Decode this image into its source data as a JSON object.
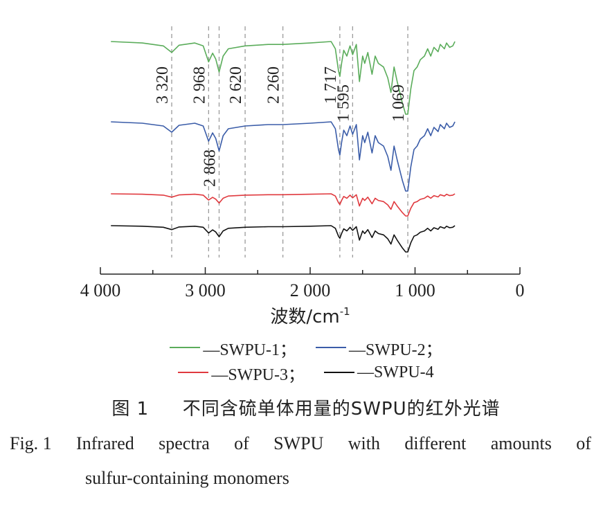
{
  "chart_data": {
    "type": "line",
    "xlabel": "波数/cm",
    "xlabel_sup": "-1",
    "xlim": [
      4000,
      0
    ],
    "xticks": [
      {
        "value": 4000,
        "label": "4 000"
      },
      {
        "value": 3000,
        "label": "3 000"
      },
      {
        "value": 2000,
        "label": "2 000"
      },
      {
        "value": 1000,
        "label": "1 000"
      },
      {
        "value": 0,
        "label": "0"
      }
    ],
    "yaxis_shown": false,
    "annotations": [
      {
        "x": 3320,
        "label": "3 320"
      },
      {
        "x": 2968,
        "label": "2 968"
      },
      {
        "x": 2868,
        "label": "2 868"
      },
      {
        "x": 2620,
        "label": "2 620"
      },
      {
        "x": 2260,
        "label": "2 260"
      },
      {
        "x": 1717,
        "label": "1 717"
      },
      {
        "x": 1595,
        "label": "1 595"
      },
      {
        "x": 1069,
        "label": "1 069"
      }
    ],
    "series": [
      {
        "name": "SWPU-1",
        "color": "#5aac5a",
        "points": [
          [
            3900,
            0
          ],
          [
            3600,
            -2
          ],
          [
            3400,
            -6
          ],
          [
            3320,
            -15
          ],
          [
            3250,
            -5
          ],
          [
            3100,
            -2
          ],
          [
            3020,
            -6
          ],
          [
            2968,
            -28
          ],
          [
            2930,
            -16
          ],
          [
            2900,
            -24
          ],
          [
            2868,
            -42
          ],
          [
            2830,
            -20
          ],
          [
            2780,
            -10
          ],
          [
            2620,
            -6
          ],
          [
            2400,
            -4
          ],
          [
            2260,
            -4
          ],
          [
            2000,
            -2
          ],
          [
            1800,
            0
          ],
          [
            1760,
            -10
          ],
          [
            1730,
            -40
          ],
          [
            1717,
            -48
          ],
          [
            1700,
            -30
          ],
          [
            1680,
            -12
          ],
          [
            1650,
            -20
          ],
          [
            1620,
            -6
          ],
          [
            1595,
            -18
          ],
          [
            1560,
            -4
          ],
          [
            1530,
            -55
          ],
          [
            1500,
            -20
          ],
          [
            1480,
            -30
          ],
          [
            1450,
            -15
          ],
          [
            1410,
            -45
          ],
          [
            1380,
            -20
          ],
          [
            1350,
            -30
          ],
          [
            1300,
            -35
          ],
          [
            1260,
            -50
          ],
          [
            1230,
            -70
          ],
          [
            1200,
            -35
          ],
          [
            1170,
            -55
          ],
          [
            1120,
            -85
          ],
          [
            1090,
            -100
          ],
          [
            1069,
            -100
          ],
          [
            1040,
            -65
          ],
          [
            1010,
            -40
          ],
          [
            980,
            -35
          ],
          [
            950,
            -25
          ],
          [
            910,
            -20
          ],
          [
            880,
            -10
          ],
          [
            850,
            -20
          ],
          [
            820,
            -8
          ],
          [
            780,
            -14
          ],
          [
            760,
            -4
          ],
          [
            720,
            -10
          ],
          [
            700,
            -2
          ],
          [
            670,
            -8
          ],
          [
            640,
            -6
          ],
          [
            620,
            0
          ]
        ]
      },
      {
        "name": "SWPU-2",
        "color": "#3a5ca8",
        "points": [
          [
            3900,
            0
          ],
          [
            3600,
            -2
          ],
          [
            3400,
            -6
          ],
          [
            3320,
            -15
          ],
          [
            3250,
            -5
          ],
          [
            3100,
            -2
          ],
          [
            3020,
            -6
          ],
          [
            2968,
            -28
          ],
          [
            2930,
            -16
          ],
          [
            2900,
            -24
          ],
          [
            2868,
            -42
          ],
          [
            2830,
            -20
          ],
          [
            2780,
            -10
          ],
          [
            2620,
            -6
          ],
          [
            2400,
            -4
          ],
          [
            2260,
            -4
          ],
          [
            2000,
            -2
          ],
          [
            1800,
            0
          ],
          [
            1760,
            -10
          ],
          [
            1730,
            -40
          ],
          [
            1717,
            -48
          ],
          [
            1700,
            -30
          ],
          [
            1680,
            -12
          ],
          [
            1650,
            -20
          ],
          [
            1620,
            -6
          ],
          [
            1595,
            -18
          ],
          [
            1560,
            -4
          ],
          [
            1530,
            -55
          ],
          [
            1500,
            -20
          ],
          [
            1480,
            -30
          ],
          [
            1450,
            -15
          ],
          [
            1410,
            -45
          ],
          [
            1380,
            -20
          ],
          [
            1350,
            -30
          ],
          [
            1300,
            -35
          ],
          [
            1260,
            -50
          ],
          [
            1230,
            -70
          ],
          [
            1200,
            -35
          ],
          [
            1170,
            -55
          ],
          [
            1120,
            -85
          ],
          [
            1090,
            -100
          ],
          [
            1069,
            -100
          ],
          [
            1040,
            -65
          ],
          [
            1010,
            -40
          ],
          [
            980,
            -35
          ],
          [
            950,
            -25
          ],
          [
            910,
            -20
          ],
          [
            880,
            -10
          ],
          [
            850,
            -20
          ],
          [
            820,
            -8
          ],
          [
            780,
            -14
          ],
          [
            760,
            -4
          ],
          [
            720,
            -10
          ],
          [
            700,
            -2
          ],
          [
            670,
            -8
          ],
          [
            640,
            -6
          ],
          [
            620,
            0
          ]
        ]
      },
      {
        "name": "SWPU-3",
        "color": "#e0393e",
        "points": [
          [
            3900,
            0
          ],
          [
            3600,
            -2
          ],
          [
            3400,
            -6
          ],
          [
            3320,
            -15
          ],
          [
            3250,
            -5
          ],
          [
            3100,
            -2
          ],
          [
            3020,
            -6
          ],
          [
            2968,
            -28
          ],
          [
            2930,
            -16
          ],
          [
            2900,
            -24
          ],
          [
            2868,
            -42
          ],
          [
            2830,
            -20
          ],
          [
            2780,
            -10
          ],
          [
            2620,
            -6
          ],
          [
            2400,
            -4
          ],
          [
            2260,
            -4
          ],
          [
            2000,
            -2
          ],
          [
            1800,
            0
          ],
          [
            1760,
            -10
          ],
          [
            1730,
            -40
          ],
          [
            1717,
            -48
          ],
          [
            1700,
            -30
          ],
          [
            1680,
            -12
          ],
          [
            1650,
            -20
          ],
          [
            1620,
            -6
          ],
          [
            1595,
            -18
          ],
          [
            1560,
            -4
          ],
          [
            1530,
            -55
          ],
          [
            1500,
            -20
          ],
          [
            1480,
            -30
          ],
          [
            1450,
            -15
          ],
          [
            1410,
            -45
          ],
          [
            1380,
            -20
          ],
          [
            1350,
            -30
          ],
          [
            1300,
            -35
          ],
          [
            1260,
            -50
          ],
          [
            1230,
            -70
          ],
          [
            1200,
            -35
          ],
          [
            1170,
            -55
          ],
          [
            1120,
            -85
          ],
          [
            1090,
            -100
          ],
          [
            1069,
            -100
          ],
          [
            1040,
            -65
          ],
          [
            1010,
            -40
          ],
          [
            980,
            -35
          ],
          [
            950,
            -25
          ],
          [
            910,
            -20
          ],
          [
            880,
            -10
          ],
          [
            850,
            -20
          ],
          [
            820,
            -8
          ],
          [
            780,
            -14
          ],
          [
            760,
            -4
          ],
          [
            720,
            -10
          ],
          [
            700,
            -2
          ],
          [
            670,
            -8
          ],
          [
            640,
            -6
          ],
          [
            620,
            0
          ]
        ]
      },
      {
        "name": "SWPU-4",
        "color": "#111111",
        "points": [
          [
            3900,
            0
          ],
          [
            3600,
            -2
          ],
          [
            3400,
            -6
          ],
          [
            3320,
            -15
          ],
          [
            3250,
            -5
          ],
          [
            3100,
            -2
          ],
          [
            3020,
            -6
          ],
          [
            2968,
            -28
          ],
          [
            2930,
            -16
          ],
          [
            2900,
            -24
          ],
          [
            2868,
            -42
          ],
          [
            2830,
            -20
          ],
          [
            2780,
            -10
          ],
          [
            2620,
            -6
          ],
          [
            2400,
            -4
          ],
          [
            2260,
            -4
          ],
          [
            2000,
            -2
          ],
          [
            1800,
            0
          ],
          [
            1760,
            -10
          ],
          [
            1730,
            -40
          ],
          [
            1717,
            -48
          ],
          [
            1700,
            -30
          ],
          [
            1680,
            -12
          ],
          [
            1650,
            -20
          ],
          [
            1620,
            -6
          ],
          [
            1595,
            -18
          ],
          [
            1560,
            -4
          ],
          [
            1530,
            -55
          ],
          [
            1500,
            -20
          ],
          [
            1480,
            -30
          ],
          [
            1450,
            -15
          ],
          [
            1410,
            -45
          ],
          [
            1380,
            -20
          ],
          [
            1350,
            -30
          ],
          [
            1300,
            -35
          ],
          [
            1260,
            -50
          ],
          [
            1230,
            -70
          ],
          [
            1200,
            -35
          ],
          [
            1170,
            -55
          ],
          [
            1120,
            -85
          ],
          [
            1090,
            -100
          ],
          [
            1069,
            -100
          ],
          [
            1040,
            -65
          ],
          [
            1010,
            -40
          ],
          [
            980,
            -35
          ],
          [
            950,
            -25
          ],
          [
            910,
            -20
          ],
          [
            880,
            -10
          ],
          [
            850,
            -20
          ],
          [
            820,
            -8
          ],
          [
            780,
            -14
          ],
          [
            760,
            -4
          ],
          [
            720,
            -10
          ],
          [
            700,
            -2
          ],
          [
            670,
            -8
          ],
          [
            640,
            -6
          ],
          [
            620,
            0
          ]
        ]
      }
    ]
  },
  "legend": [
    {
      "label": "—SWPU-1；",
      "color": "#5aac5a"
    },
    {
      "label": "—SWPU-2；",
      "color": "#3a5ca8"
    },
    {
      "label": "—SWPU-3；",
      "color": "#e0393e"
    },
    {
      "label": "—SWPU-4",
      "color": "#111111"
    }
  ],
  "caption": {
    "cn_num": "图 1",
    "cn_text": "不同含硫单体用量的SWPU的红外光谱",
    "en_line1": [
      "Fig. 1",
      "Infrared",
      "spectra",
      "of",
      "SWPU",
      "with",
      "different",
      "amounts",
      "of"
    ],
    "en_line2": "sulfur-containing monomers"
  }
}
